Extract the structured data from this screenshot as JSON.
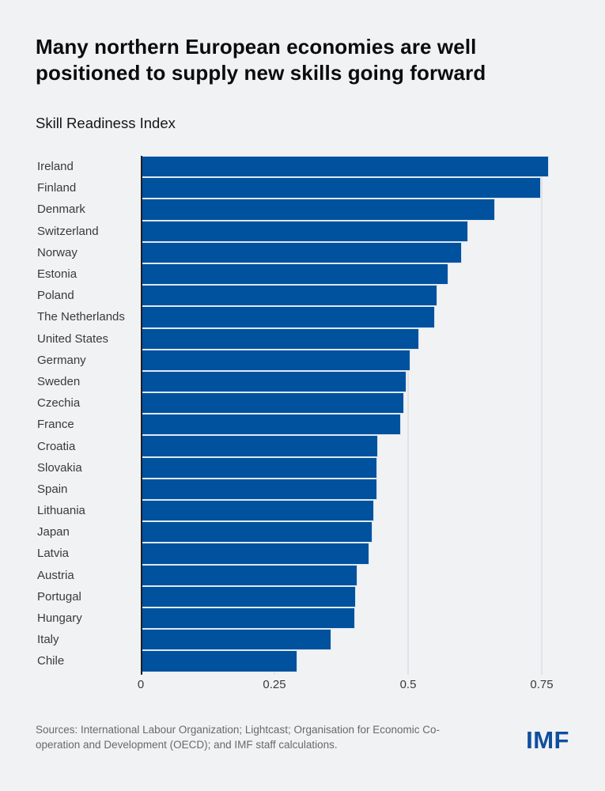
{
  "page": {
    "background": "#f1f2f4"
  },
  "header": {
    "title_lines": [
      "Many northern European economies are well",
      "positioned to supply new skills going forward"
    ],
    "subtitle": "Skill Readiness Index"
  },
  "chart_data": {
    "type": "bar",
    "orientation": "horizontal",
    "title": "Many northern European economies are well positioned to supply new skills going forward",
    "subtitle": "Skill Readiness Index",
    "categories": [
      "Ireland",
      "Finland",
      "Denmark",
      "Switzerland",
      "Norway",
      "Estonia",
      "Poland",
      "The Netherlands",
      "United States",
      "Germany",
      "Sweden",
      "Czechia",
      "France",
      "Croatia",
      "Slovakia",
      "Spain",
      "Lithuania",
      "Japan",
      "Latvia",
      "Austria",
      "Portugal",
      "Hungary",
      "Italy",
      "Chile"
    ],
    "values": [
      0.76,
      0.745,
      0.66,
      0.61,
      0.598,
      0.572,
      0.552,
      0.548,
      0.518,
      0.502,
      0.494,
      0.49,
      0.484,
      0.441,
      0.44,
      0.439,
      0.433,
      0.431,
      0.425,
      0.402,
      0.4,
      0.398,
      0.353,
      0.29
    ],
    "xlabel": "",
    "ylabel": "",
    "xlim": [
      0,
      0.86
    ],
    "xticks": [
      0,
      0.25,
      0.5,
      0.75
    ],
    "xtick_labels": [
      "0",
      "0.25",
      "0.5",
      "0.75"
    ],
    "grid": "vertical-light, no bottom axis, dark zero axis",
    "legend": "none",
    "bar_color": "#00519e"
  },
  "footer": {
    "sources": [
      "Sources: International Labour Organization; Lightcast; Organisation for Economic Co-",
      "operation and Development (OECD); and IMF staff calculations."
    ],
    "logo": "IMF"
  },
  "colors": {
    "background": "#f1f2f4",
    "bar": "#00519e",
    "axis": "#1f1f1f",
    "gridline": "#e1e3e6",
    "title_text": "#0c0c0c",
    "label_text": "#3a3a3a",
    "source_text": "#696969",
    "logo_blue": "#0e4f9e"
  }
}
